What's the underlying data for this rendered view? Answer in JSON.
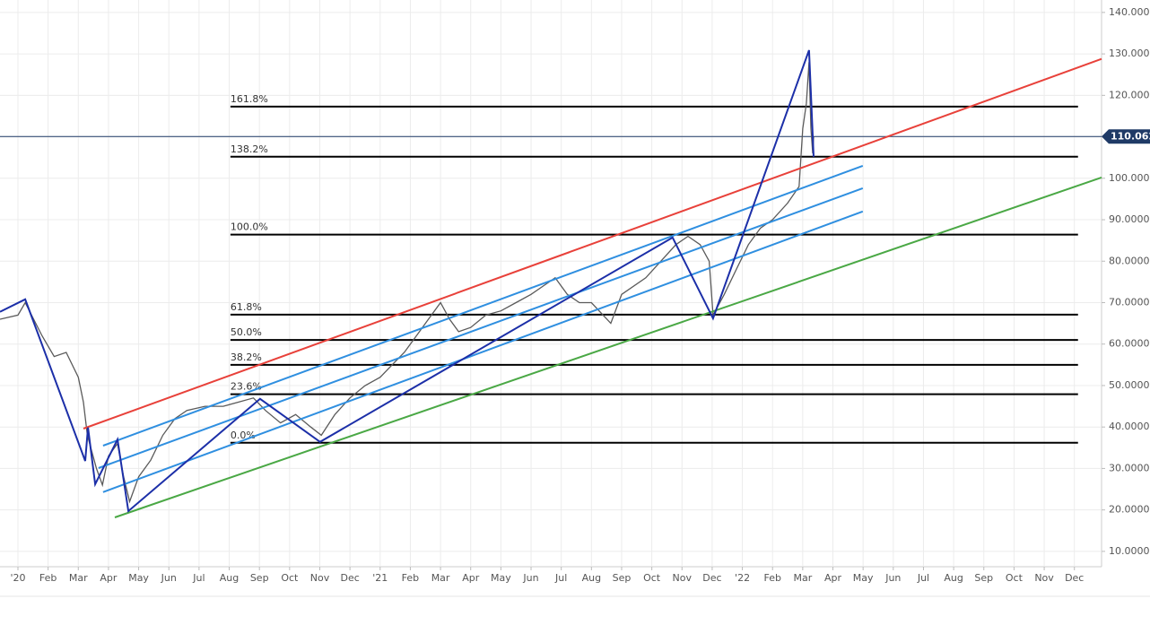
{
  "chart_data": {
    "type": "line",
    "xlim": [
      -0.594,
      35.9
    ],
    "ylim": [
      6.3,
      143.0
    ],
    "xticks": [
      {
        "value": 0,
        "label": "'20"
      },
      {
        "value": 1,
        "label": "Feb"
      },
      {
        "value": 2,
        "label": "Mar"
      },
      {
        "value": 3,
        "label": "Apr"
      },
      {
        "value": 4,
        "label": "May"
      },
      {
        "value": 5,
        "label": "Jun"
      },
      {
        "value": 6,
        "label": "Jul"
      },
      {
        "value": 7,
        "label": "Aug"
      },
      {
        "value": 8,
        "label": "Sep"
      },
      {
        "value": 9,
        "label": "Oct"
      },
      {
        "value": 10,
        "label": "Nov"
      },
      {
        "value": 11,
        "label": "Dec"
      },
      {
        "value": 12,
        "label": "'21"
      },
      {
        "value": 13,
        "label": "Feb"
      },
      {
        "value": 14,
        "label": "Mar"
      },
      {
        "value": 15,
        "label": "Apr"
      },
      {
        "value": 16,
        "label": "May"
      },
      {
        "value": 17,
        "label": "Jun"
      },
      {
        "value": 18,
        "label": "Jul"
      },
      {
        "value": 19,
        "label": "Aug"
      },
      {
        "value": 20,
        "label": "Sep"
      },
      {
        "value": 21,
        "label": "Oct"
      },
      {
        "value": 22,
        "label": "Nov"
      },
      {
        "value": 23,
        "label": "Dec"
      },
      {
        "value": 24,
        "label": "'22"
      },
      {
        "value": 25,
        "label": "Feb"
      },
      {
        "value": 26,
        "label": "Mar"
      },
      {
        "value": 27,
        "label": "Apr"
      },
      {
        "value": 28,
        "label": "May"
      },
      {
        "value": 29,
        "label": "Jun"
      },
      {
        "value": 30,
        "label": "Jul"
      },
      {
        "value": 31,
        "label": "Aug"
      },
      {
        "value": 32,
        "label": "Sep"
      },
      {
        "value": 33,
        "label": "Oct"
      },
      {
        "value": 34,
        "label": "Nov"
      },
      {
        "value": 35,
        "label": "Dec"
      }
    ],
    "yticks": [
      {
        "value": 10,
        "label": "10.0000"
      },
      {
        "value": 20,
        "label": "20.0000"
      },
      {
        "value": 30,
        "label": "30.0000"
      },
      {
        "value": 40,
        "label": "40.0000"
      },
      {
        "value": 50,
        "label": "50.0000"
      },
      {
        "value": 60,
        "label": "60.0000"
      },
      {
        "value": 70,
        "label": "70.0000"
      },
      {
        "value": 80,
        "label": "80.0000"
      },
      {
        "value": 90,
        "label": "90.0000"
      },
      {
        "value": 100,
        "label": "100.0000"
      },
      {
        "value": 110,
        "label": "110.0000"
      },
      {
        "value": 120,
        "label": "120.0000"
      },
      {
        "value": 130,
        "label": "130.0000"
      },
      {
        "value": 140,
        "label": "140.0000"
      }
    ],
    "grid": true,
    "series": [
      {
        "color": "#5a5a5a",
        "x": [
          -0.594,
          0.0,
          0.24,
          0.8,
          1.2,
          1.6,
          2.0,
          2.17,
          2.3,
          2.6,
          2.8,
          3.0,
          3.3,
          3.5,
          3.7,
          4.0,
          4.4,
          4.8,
          5.2,
          5.6,
          6.2,
          6.8,
          7.3,
          7.8,
          8.2,
          8.7,
          9.2,
          9.7,
          10.05,
          10.5,
          11.0,
          11.5,
          12.0,
          12.4,
          12.8,
          13.2,
          13.6,
          14.0,
          14.3,
          14.6,
          15.0,
          15.5,
          16.0,
          16.5,
          17.0,
          17.4,
          17.8,
          18.2,
          18.6,
          19.0,
          19.64,
          20.0,
          20.8,
          21.3,
          21.8,
          22.2,
          22.6,
          22.9,
          23.03,
          23.4,
          23.8,
          24.2,
          24.6,
          25.0,
          25.5,
          25.88,
          26.0,
          26.12,
          26.21,
          26.27,
          26.33,
          26.36
        ],
        "values": [
          66,
          67,
          70,
          62,
          57,
          58,
          52,
          46,
          38,
          30,
          26,
          33,
          36,
          28,
          22,
          28,
          32,
          38,
          42,
          44,
          45,
          45,
          46,
          47,
          44,
          41,
          43,
          40,
          38,
          43,
          47,
          50,
          52,
          55,
          58,
          62,
          66,
          70,
          66,
          63,
          64,
          67,
          68,
          70,
          72,
          74,
          76,
          72,
          70,
          70,
          65,
          72,
          76,
          80,
          84,
          86,
          84,
          80,
          67,
          72,
          78,
          84,
          88,
          90,
          94,
          98,
          112,
          118,
          128,
          112,
          106,
          110.062
        ]
      }
    ],
    "current_price": {
      "value": 110.062,
      "label": "110.0620"
    },
    "fib_xlim": [
      7.04,
      35.12
    ],
    "fib_levels": [
      {
        "label": "161.8%",
        "value": 117.3
      },
      {
        "label": "138.2%",
        "value": 105.2
      },
      {
        "label": "100.0%",
        "value": 86.4
      },
      {
        "label": "61.8%",
        "value": 67.1
      },
      {
        "label": "50.0%",
        "value": 61.0
      },
      {
        "label": "38.2%",
        "value": 55.0
      },
      {
        "label": "23.6%",
        "value": 47.9
      },
      {
        "label": "0.0%",
        "value": 36.2
      }
    ],
    "trendlines": [
      {
        "color": "#e8413a",
        "x": [
          2.17,
          35.9
        ],
        "values": [
          39.6,
          128.8
        ]
      },
      {
        "color": "#4aa845",
        "x": [
          3.21,
          35.9
        ],
        "values": [
          18.2,
          100.2
        ]
      },
      {
        "color": "#2f8fe0",
        "x": [
          2.82,
          27.99
        ],
        "values": [
          35.5,
          103.0
        ]
      },
      {
        "color": "#2f8fe0",
        "x": [
          2.67,
          27.99
        ],
        "values": [
          30.1,
          97.6
        ]
      },
      {
        "color": "#2f8fe0",
        "x": [
          2.82,
          27.99
        ],
        "values": [
          24.3,
          92.0
        ]
      },
      {
        "color": "#1c2fa8",
        "x": [
          -0.594,
          0.24,
          2.23,
          2.32,
          2.56,
          3.3,
          3.66,
          8.02,
          10.01,
          21.69,
          23.03,
          26.21,
          26.36
        ],
        "values": [
          67.8,
          70.8,
          31.8,
          39.9,
          26.2,
          37.0,
          19.7,
          46.8,
          36.4,
          85.7,
          66.2,
          130.9,
          105.2
        ]
      }
    ]
  }
}
